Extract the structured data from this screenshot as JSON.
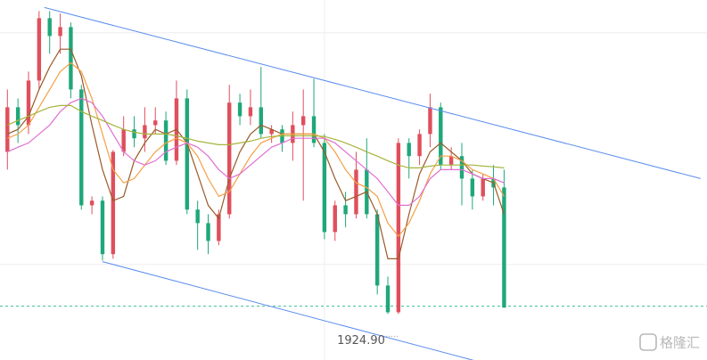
{
  "chart_data": {
    "type": "candlestick",
    "categories": [
      null,
      null,
      null,
      null,
      null,
      null,
      null,
      null,
      null,
      null,
      null,
      null,
      null,
      null,
      null,
      null,
      null,
      null,
      null,
      null,
      null,
      null,
      null,
      null,
      null,
      null,
      null,
      null,
      null,
      null,
      null,
      null,
      null,
      null,
      null,
      null,
      null,
      null,
      null,
      null,
      null,
      null,
      null,
      null,
      null,
      null,
      null,
      null
    ],
    "open": [
      1970.4,
      1982.9,
      1977.9,
      1990.4,
      2007.9,
      2002.9,
      2005.4,
      1987.9,
      1955.4,
      1956.7,
      1941.7,
      1970.4,
      1976.7,
      1974.2,
      1977.9,
      1979.2,
      1967.9,
      1985.4,
      1954.2,
      1950.4,
      1945.4,
      1952.9,
      1984.2,
      1980.4,
      1982.9,
      1975.4,
      1976.7,
      1972.9,
      1977.9,
      1980.4,
      1972.9,
      1947.9,
      1955.4,
      1952.9,
      1965.4,
      1952.9,
      1932.9,
      1925.4,
      1972.9,
      1969.2,
      1975.4,
      1982.9,
      1966.7,
      1969.2,
      1962.9,
      1957.9,
      1962.9,
      1960.4
    ],
    "high": [
      1987.9,
      1985.4,
      1992.9,
      2009.9,
      2009.9,
      2009.2,
      2006.7,
      1989.2,
      1957.9,
      1957.9,
      1970.9,
      1980.4,
      1980.4,
      1982.9,
      1982.9,
      1981.7,
      1990.4,
      1987.9,
      1956.7,
      1952.9,
      1954.2,
      1989.2,
      1986.7,
      1987.9,
      1994.2,
      1977.9,
      1977.9,
      1981.7,
      1987.9,
      1990.9,
      1975.4,
      1956.7,
      1959.2,
      1970.4,
      1974.2,
      1954.2,
      1935.4,
      1974.2,
      1974.2,
      1976.7,
      1986.7,
      1984.2,
      1971.7,
      1972.9,
      1965.4,
      1964.2,
      1966.7,
      1965.4
    ],
    "low": [
      1965.4,
      1972.9,
      1975.4,
      1987.9,
      1997.9,
      1997.9,
      1985.4,
      1954.2,
      1952.9,
      1939.9,
      1940.4,
      1969.2,
      1971.7,
      1970.4,
      1975.4,
      1966.7,
      1966.7,
      1952.9,
      1942.9,
      1941.7,
      1944.2,
      1951.7,
      1977.9,
      1977.9,
      1974.2,
      1972.9,
      1970.4,
      1967.9,
      1956.7,
      1971.7,
      1945.9,
      1945.4,
      1949.2,
      1951.7,
      1951.7,
      1930.4,
      1924.9,
      1924.9,
      1962.9,
      1966.7,
      1971.7,
      1965.4,
      1965.4,
      1955.4,
      1954.2,
      1956.7,
      1955.4,
      1926.7
    ],
    "close": [
      1982.9,
      1977.9,
      1990.4,
      2007.9,
      2002.9,
      2005.4,
      1987.9,
      1955.4,
      1956.7,
      1941.7,
      1970.4,
      1976.7,
      1974.2,
      1977.9,
      1979.2,
      1967.9,
      1985.4,
      1954.2,
      1950.4,
      1945.4,
      1952.9,
      1984.2,
      1980.4,
      1982.9,
      1975.4,
      1976.7,
      1972.9,
      1977.9,
      1980.4,
      1972.9,
      1947.9,
      1955.4,
      1952.9,
      1965.4,
      1952.9,
      1932.9,
      1925.4,
      1972.9,
      1969.2,
      1975.4,
      1982.9,
      1966.7,
      1969.2,
      1962.9,
      1957.9,
      1962.9,
      1960.4,
      1926.7
    ],
    "up_color": "#df4f5c",
    "down_color": "#1fa77a",
    "series": [
      {
        "color": "#9a5a2a",
        "values": [
          1975.4,
          1976.7,
          1980.4,
          1987.9,
          1994.2,
          1999.2,
          1999.2,
          1991.7,
          1977.9,
          1965.4,
          1956.7,
          1957.9,
          1967.9,
          1972.9,
          1976.7,
          1975.4,
          1976.7,
          1972.9,
          1964.2,
          1955.4,
          1951.7,
          1962.9,
          1970.4,
          1975.4,
          1977.9,
          1976.7,
          1975.4,
          1975.4,
          1975.4,
          1975.4,
          1970.4,
          1962.9,
          1956.7,
          1957.9,
          1959.2,
          1952.9,
          1940.4,
          1940.4,
          1952.9,
          1964.2,
          1970.4,
          1972.9,
          1970.4,
          1967.9,
          1964.2,
          1962.9,
          1961.7,
          1952.9
        ]
      },
      {
        "color": "#f5a046",
        "values": [
          1974.2,
          1975.4,
          1977.9,
          1982.9,
          1987.9,
          1992.9,
          1995.4,
          1992.9,
          1985.4,
          1975.4,
          1965.4,
          1961.7,
          1962.9,
          1966.7,
          1970.4,
          1972.9,
          1974.2,
          1972.9,
          1969.2,
          1962.9,
          1957.9,
          1959.2,
          1964.2,
          1969.2,
          1972.9,
          1974.2,
          1975.4,
          1975.4,
          1975.4,
          1975.4,
          1974.2,
          1970.4,
          1965.4,
          1961.7,
          1960.4,
          1957.9,
          1950.4,
          1946.7,
          1950.4,
          1956.7,
          1964.2,
          1969.2,
          1969.2,
          1967.9,
          1965.4,
          1964.2,
          1962.9,
          1957.9
        ]
      },
      {
        "color": "#e06fd2",
        "values": [
          1970.4,
          1971.7,
          1972.9,
          1975.4,
          1977.9,
          1981.7,
          1984.2,
          1985.4,
          1984.2,
          1980.4,
          1975.4,
          1970.4,
          1967.9,
          1966.7,
          1967.9,
          1970.4,
          1971.7,
          1972.9,
          1971.7,
          1969.2,
          1965.4,
          1962.9,
          1964.2,
          1966.7,
          1969.2,
          1971.7,
          1972.9,
          1974.2,
          1974.2,
          1974.2,
          1974.2,
          1972.9,
          1970.4,
          1967.9,
          1965.4,
          1962.9,
          1959.2,
          1955.4,
          1955.4,
          1957.9,
          1962.9,
          1965.4,
          1965.4,
          1965.4,
          1964.2,
          1962.9,
          1962.9,
          1961.7
        ]
      },
      {
        "color": "#a6b43c",
        "values": [
          1977.9,
          1979.2,
          1980.4,
          1981.7,
          1982.9,
          1983.4,
          1983.4,
          1981.7,
          1980.4,
          1979.2,
          1977.9,
          1976.7,
          1975.9,
          1975.4,
          1975.4,
          1975.4,
          1974.9,
          1974.2,
          1973.4,
          1972.9,
          1972.4,
          1972.4,
          1972.9,
          1973.4,
          1974.2,
          1974.7,
          1974.9,
          1974.9,
          1974.9,
          1974.9,
          1974.7,
          1973.9,
          1972.9,
          1971.7,
          1970.4,
          1969.2,
          1967.9,
          1966.7,
          1965.9,
          1965.9,
          1966.4,
          1966.7,
          1966.7,
          1966.7,
          1966.7,
          1966.4,
          1966.2,
          1965.9
        ]
      }
    ],
    "channels": [
      {
        "color": "#5b8def",
        "points": [
          {
            "x": 3.5,
            "y": 2010.9
          },
          {
            "x": 65.6,
            "y": 1962.9
          }
        ]
      },
      {
        "color": "#5b8def",
        "points": [
          {
            "x": 9.0,
            "y": 1939.6
          },
          {
            "x": 44.1,
            "y": 1911.9
          }
        ]
      }
    ],
    "price_line": {
      "value": 1927.1,
      "color": "#3fbf95"
    },
    "low_annotation": {
      "text": "1924.90",
      "value": 1924.9,
      "index": 37
    },
    "grid_y": [
      2003.8,
      1938.8
    ],
    "grid_x": [
      30.0
    ],
    "xlim": [
      -0.7,
      66.2
    ],
    "ylim": [
      1912,
      2013
    ],
    "watermark": "格隆汇"
  }
}
